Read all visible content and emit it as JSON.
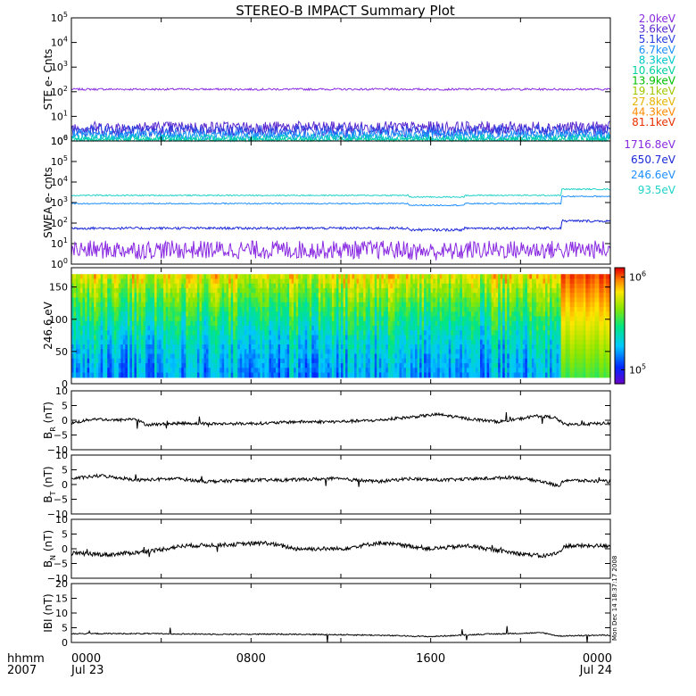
{
  "title": "STEREO-B IMPACT Summary Plot",
  "footer": {
    "time_label": "hhmm",
    "year_label": "2007",
    "xticks": [
      {
        "value": 0,
        "label": "0000",
        "sub": "Jul 23"
      },
      {
        "value": 480,
        "label": "0800",
        "sub": ""
      },
      {
        "value": 960,
        "label": "1600",
        "sub": ""
      },
      {
        "value": 1440,
        "label": "0000",
        "sub": "Jul 24"
      }
    ],
    "side_stamp": "Mon Dec 14 18:37:17 2008"
  },
  "colors": {
    "axis": "#000000",
    "trace": "#000000"
  },
  "chart_data": [
    {
      "type": "line",
      "panel": "ste",
      "ylabel": "STE e- Cnts",
      "yscale": "log",
      "ylim_exp": [
        0,
        5
      ],
      "yticks": [
        {
          "value": 0,
          "label": "10",
          "sup": "0"
        },
        {
          "value": 1,
          "label": "10",
          "sup": "1"
        },
        {
          "value": 2,
          "label": "10",
          "sup": "2"
        },
        {
          "value": 3,
          "label": "10",
          "sup": "3"
        },
        {
          "value": 4,
          "label": "10",
          "sup": "4"
        },
        {
          "value": 5,
          "label": "10",
          "sup": "5"
        }
      ],
      "legend_placement": "right",
      "series": [
        {
          "name": "2.0keV",
          "color": "#8a2be2",
          "base_log": 2.1,
          "noise": 0.04
        },
        {
          "name": "3.6keV",
          "color": "#5a2ad0",
          "base_log": 0.55,
          "noise": 0.25
        },
        {
          "name": "5.1keV",
          "color": "#2a3fe0",
          "base_log": 0.4,
          "noise": 0.25
        },
        {
          "name": "6.7keV",
          "color": "#1e90ff",
          "base_log": 0.25,
          "noise": 0.2
        },
        {
          "name": "8.3keV",
          "color": "#00c8c8",
          "base_log": 0.12,
          "noise": 0.15
        },
        {
          "name": "10.6keV",
          "color": "#00d2a0",
          "base_log": 0.05,
          "noise": 0.08
        },
        {
          "name": "13.9keV",
          "color": "#00c000",
          "base_log": 0.0,
          "noise": 0.0
        },
        {
          "name": "19.1keV",
          "color": "#a0c800",
          "base_log": 0.0,
          "noise": 0.0
        },
        {
          "name": "27.8keV",
          "color": "#e6b400",
          "base_log": 0.0,
          "noise": 0.0
        },
        {
          "name": "44.3keV",
          "color": "#ff8c00",
          "base_log": 0.0,
          "noise": 0.0
        },
        {
          "name": "81.1keV",
          "color": "#e83000",
          "base_log": 0.0,
          "noise": 0.0
        }
      ]
    },
    {
      "type": "line",
      "panel": "swea",
      "ylabel": "SWEA e- cnts",
      "yscale": "log",
      "ylim_exp": [
        0,
        6
      ],
      "yticks": [
        {
          "value": 0,
          "label": "10",
          "sup": "0"
        },
        {
          "value": 1,
          "label": "10",
          "sup": "1"
        },
        {
          "value": 2,
          "label": "10",
          "sup": "2"
        },
        {
          "value": 3,
          "label": "10",
          "sup": "3"
        },
        {
          "value": 4,
          "label": "10",
          "sup": "4"
        },
        {
          "value": 5,
          "label": "10",
          "sup": "5"
        },
        {
          "value": 6,
          "label": "10",
          "sup": "6"
        }
      ],
      "legend_placement": "right",
      "series": [
        {
          "name": "1716.8eV",
          "color": "#8a2be2",
          "base_log": 0.7,
          "noise": 0.45,
          "step_log": 0.0
        },
        {
          "name": "650.7eV",
          "color": "#1a28d8",
          "base_log": 1.75,
          "noise": 0.06,
          "step_log": 0.35
        },
        {
          "name": "246.6eV",
          "color": "#1e90ff",
          "base_log": 2.95,
          "noise": 0.03,
          "step_log": 0.35
        },
        {
          "name": "93.5eV",
          "color": "#20d2c8",
          "base_log": 3.35,
          "noise": 0.03,
          "step_log": 0.3
        }
      ]
    },
    {
      "type": "heatmap",
      "panel": "spectrogram",
      "ylabel": "246.6 eV",
      "ylim": [
        0,
        180
      ],
      "yticks": [
        {
          "value": 0,
          "label": "0"
        },
        {
          "value": 50,
          "label": "50"
        },
        {
          "value": 100,
          "label": "100"
        },
        {
          "value": 150,
          "label": "150"
        }
      ],
      "colorbar": {
        "min_exp": 4.85,
        "max_exp": 6.1,
        "ticks": [
          {
            "exp": 5,
            "label": "10",
            "sup": "5"
          },
          {
            "exp": 6,
            "label": "10",
            "sup": "6"
          }
        ]
      }
    },
    {
      "type": "line",
      "panel": "br",
      "ylabel": "B",
      "ylabel_sub": "R",
      "ylabel_unit": "(nT)",
      "ylim": [
        -10,
        10
      ],
      "yticks": [
        {
          "value": -10,
          "label": "−10"
        },
        {
          "value": -5,
          "label": "−5"
        },
        {
          "value": 0,
          "label": "0"
        },
        {
          "value": 5,
          "label": "5"
        },
        {
          "value": 10,
          "label": "10"
        }
      ],
      "keyframes": [
        [
          0,
          -1
        ],
        [
          60,
          0.5
        ],
        [
          120,
          0
        ],
        [
          170,
          0.5
        ],
        [
          200,
          -1.5
        ],
        [
          300,
          -1
        ],
        [
          400,
          -1.2
        ],
        [
          520,
          -1
        ],
        [
          600,
          -0.5
        ],
        [
          700,
          -0.5
        ],
        [
          820,
          0
        ],
        [
          900,
          1
        ],
        [
          980,
          2
        ],
        [
          1060,
          0.5
        ],
        [
          1140,
          -0.5
        ],
        [
          1200,
          0.5
        ],
        [
          1240,
          1.5
        ],
        [
          1290,
          1.0
        ],
        [
          1320,
          -1.5
        ],
        [
          1440,
          -1
        ]
      ],
      "noise": 0.5
    },
    {
      "type": "line",
      "panel": "bt",
      "ylabel": "B",
      "ylabel_sub": "T",
      "ylabel_unit": "(nT)",
      "ylim": [
        -10,
        10
      ],
      "yticks": [
        {
          "value": -10,
          "label": "−10"
        },
        {
          "value": -5,
          "label": "−5"
        },
        {
          "value": 0,
          "label": "0"
        },
        {
          "value": 5,
          "label": "5"
        },
        {
          "value": 10,
          "label": "10"
        }
      ],
      "keyframes": [
        [
          0,
          2
        ],
        [
          80,
          3
        ],
        [
          180,
          1.5
        ],
        [
          280,
          2
        ],
        [
          360,
          1
        ],
        [
          480,
          1.5
        ],
        [
          560,
          1.5
        ],
        [
          700,
          2
        ],
        [
          820,
          1
        ],
        [
          900,
          2
        ],
        [
          980,
          1.5
        ],
        [
          1100,
          2
        ],
        [
          1180,
          2.5
        ],
        [
          1260,
          1
        ],
        [
          1300,
          -0.5
        ],
        [
          1320,
          1.5
        ],
        [
          1440,
          1
        ]
      ],
      "noise": 0.55
    },
    {
      "type": "line",
      "panel": "bn",
      "ylabel": "B",
      "ylabel_sub": "N",
      "ylabel_unit": "(nT)",
      "ylim": [
        -10,
        10
      ],
      "yticks": [
        {
          "value": -10,
          "label": "−10"
        },
        {
          "value": -5,
          "label": "−5"
        },
        {
          "value": 0,
          "label": "0"
        },
        {
          "value": 5,
          "label": "5"
        },
        {
          "value": 10,
          "label": "10"
        }
      ],
      "keyframes": [
        [
          0,
          -1.5
        ],
        [
          100,
          -2
        ],
        [
          200,
          -1
        ],
        [
          300,
          1
        ],
        [
          440,
          1.5
        ],
        [
          520,
          2
        ],
        [
          600,
          0
        ],
        [
          720,
          0
        ],
        [
          820,
          2
        ],
        [
          900,
          1
        ],
        [
          960,
          0
        ],
        [
          1060,
          1
        ],
        [
          1160,
          -1
        ],
        [
          1260,
          -2.5
        ],
        [
          1300,
          -1.5
        ],
        [
          1320,
          1
        ],
        [
          1440,
          1
        ]
      ],
      "noise": 0.7
    },
    {
      "type": "line",
      "panel": "bmag",
      "ylabel": "IBI",
      "ylabel_unit": "(nT)",
      "ylim": [
        0,
        20
      ],
      "yticks": [
        {
          "value": 0,
          "label": "0"
        },
        {
          "value": 5,
          "label": "5"
        },
        {
          "value": 10,
          "label": "10"
        },
        {
          "value": 15,
          "label": "15"
        },
        {
          "value": 20,
          "label": "20"
        }
      ],
      "keyframes": [
        [
          0,
          3
        ],
        [
          200,
          3
        ],
        [
          400,
          2.8
        ],
        [
          600,
          2.8
        ],
        [
          800,
          2.5
        ],
        [
          960,
          2
        ],
        [
          1100,
          2.8
        ],
        [
          1260,
          3.3
        ],
        [
          1300,
          2.2
        ],
        [
          1440,
          2.5
        ]
      ],
      "noise": 0.2
    }
  ]
}
